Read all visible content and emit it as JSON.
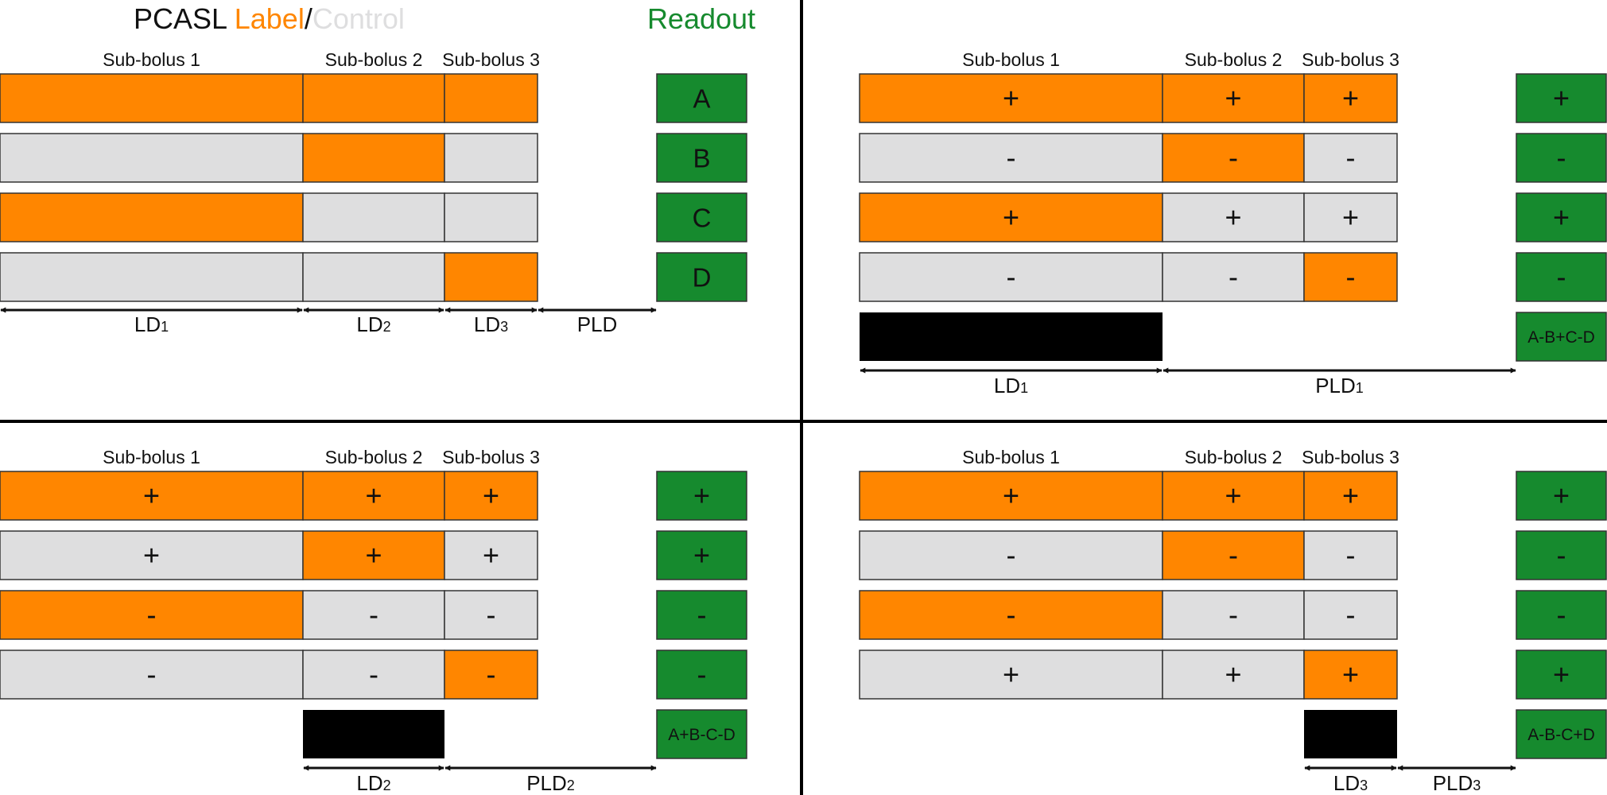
{
  "colors": {
    "label": "#FF8600",
    "control": "#DEDEDF",
    "readout": "#168A2E",
    "labelled_bolus": "#000000",
    "text": "#111111"
  },
  "title": {
    "pcasl": "PCASL ",
    "label": "Label",
    "slash": "/",
    "control": "Control",
    "readout": "Readout"
  },
  "panels": [
    {
      "id": "top-left",
      "headers": [
        "Sub-bolus 1",
        "Sub-bolus 2",
        "Sub-bolus 3"
      ],
      "rows": [
        {
          "states": [
            "label",
            "label",
            "label"
          ],
          "signs": [
            "",
            "",
            ""
          ],
          "readout": "A"
        },
        {
          "states": [
            "control",
            "label",
            "control"
          ],
          "signs": [
            "",
            "",
            ""
          ],
          "readout": "B"
        },
        {
          "states": [
            "label",
            "control",
            "control"
          ],
          "signs": [
            "",
            "",
            ""
          ],
          "readout": "C"
        },
        {
          "states": [
            "control",
            "control",
            "label"
          ],
          "signs": [
            "",
            "",
            ""
          ],
          "readout": "D"
        }
      ],
      "labelled_bolus": null,
      "combination": null,
      "dimensions": [
        {
          "main": "LD",
          "sub": "1"
        },
        {
          "main": "LD",
          "sub": "2"
        },
        {
          "main": "LD",
          "sub": "3"
        },
        {
          "main": "PLD",
          "sub": ""
        }
      ]
    },
    {
      "id": "top-right",
      "headers": [
        "Sub-bolus 1",
        "Sub-bolus 2",
        "Sub-bolus 3"
      ],
      "rows": [
        {
          "states": [
            "label",
            "label",
            "label"
          ],
          "signs": [
            "+",
            "+",
            "+"
          ],
          "readout": "+"
        },
        {
          "states": [
            "control",
            "label",
            "control"
          ],
          "signs": [
            "-",
            "-",
            "-"
          ],
          "readout": "-"
        },
        {
          "states": [
            "label",
            "control",
            "control"
          ],
          "signs": [
            "+",
            "+",
            "+"
          ],
          "readout": "+"
        },
        {
          "states": [
            "control",
            "control",
            "label"
          ],
          "signs": [
            "-",
            "-",
            "-"
          ],
          "readout": "-"
        }
      ],
      "labelled_bolus": [
        1
      ],
      "combination": "A-B+C-D",
      "dimensions": [
        {
          "main": "LD",
          "sub": "1"
        },
        {
          "main": "PLD",
          "sub": "1"
        }
      ]
    },
    {
      "id": "bottom-left",
      "headers": [
        "Sub-bolus 1",
        "Sub-bolus 2",
        "Sub-bolus 3"
      ],
      "rows": [
        {
          "states": [
            "label",
            "label",
            "label"
          ],
          "signs": [
            "+",
            "+",
            "+"
          ],
          "readout": "+"
        },
        {
          "states": [
            "control",
            "label",
            "control"
          ],
          "signs": [
            "+",
            "+",
            "+"
          ],
          "readout": "+"
        },
        {
          "states": [
            "label",
            "control",
            "control"
          ],
          "signs": [
            "-",
            "-",
            "-"
          ],
          "readout": "-"
        },
        {
          "states": [
            "control",
            "control",
            "label"
          ],
          "signs": [
            "-",
            "-",
            "-"
          ],
          "readout": "-"
        }
      ],
      "labelled_bolus": [
        2
      ],
      "combination": "A+B-C-D",
      "dimensions": [
        {
          "main": "LD",
          "sub": "2"
        },
        {
          "main": "PLD",
          "sub": "2"
        }
      ]
    },
    {
      "id": "bottom-right",
      "headers": [
        "Sub-bolus 1",
        "Sub-bolus 2",
        "Sub-bolus 3"
      ],
      "rows": [
        {
          "states": [
            "label",
            "label",
            "label"
          ],
          "signs": [
            "+",
            "+",
            "+"
          ],
          "readout": "+"
        },
        {
          "states": [
            "control",
            "label",
            "control"
          ],
          "signs": [
            "-",
            "-",
            "-"
          ],
          "readout": "-"
        },
        {
          "states": [
            "label",
            "control",
            "control"
          ],
          "signs": [
            "-",
            "-",
            "-"
          ],
          "readout": "-"
        },
        {
          "states": [
            "control",
            "control",
            "label"
          ],
          "signs": [
            "+",
            "+",
            "+"
          ],
          "readout": "+"
        }
      ],
      "labelled_bolus": [
        3
      ],
      "combination": "A-B-C+D",
      "dimensions": [
        {
          "main": "LD",
          "sub": "3"
        },
        {
          "main": "PLD",
          "sub": "3"
        }
      ]
    }
  ]
}
